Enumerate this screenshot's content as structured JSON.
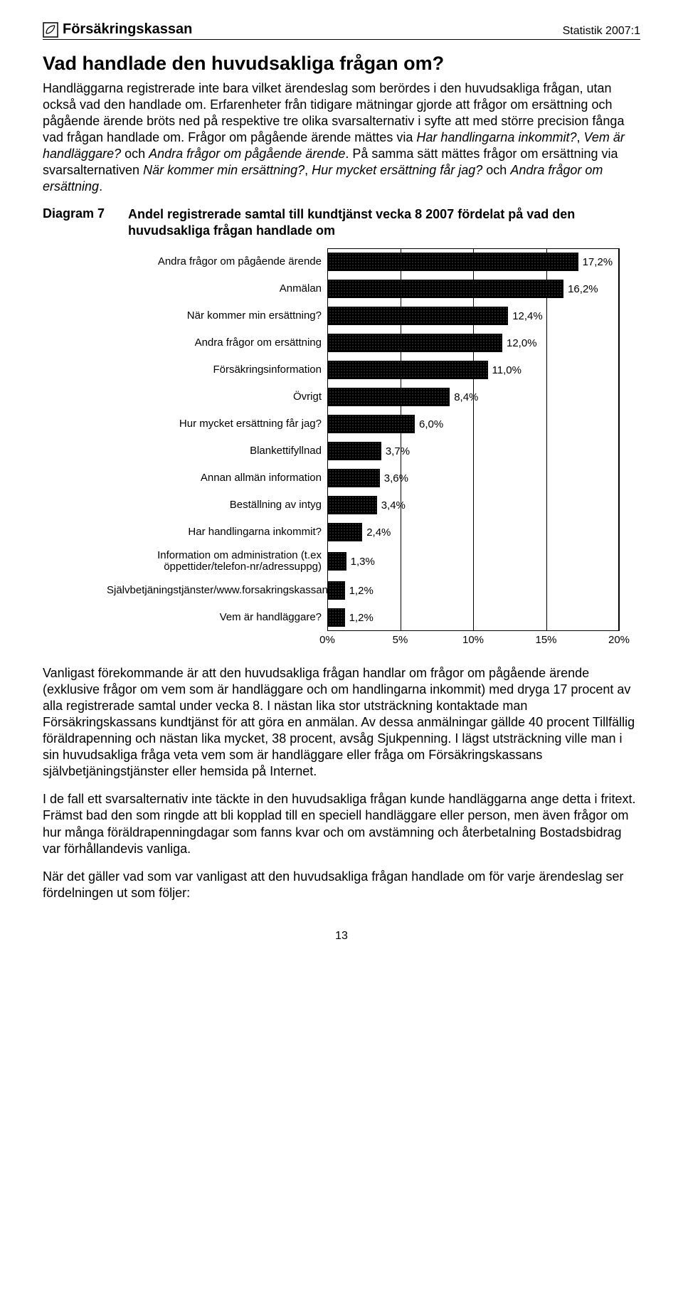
{
  "header": {
    "brand": "Försäkringskassan",
    "doc_id": "Statistik 2007:1"
  },
  "title": "Vad handlade den huvudsakliga frågan om?",
  "para1_a": "Handläggarna registrerade inte bara vilket ärendeslag som berördes i den huvudsakliga frågan, utan också vad den handlade om. Erfarenheter från tidigare mätningar gjorde att frågor om ersättning och pågående ärende bröts ned på respektive tre olika svarsalternativ i syfte att med större precision fånga vad frågan handlade om. Frågor om pågående ärende mättes via ",
  "para1_i1": "Har handlingarna inkommit?",
  "para1_b": ", ",
  "para1_i2": "Vem är handläggare?",
  "para1_c": " och ",
  "para1_i3": "Andra frågor om pågående ärende",
  "para1_d": ". På samma sätt mättes frågor om ersättning via svarsalternativen ",
  "para1_i4": "När kommer min ersättning?",
  "para1_e": ", ",
  "para1_i5": "Hur mycket ersättning får jag?",
  "para1_f": " och ",
  "para1_i6": "Andra frågor om ersättning",
  "para1_g": ".",
  "diagram": {
    "label": "Diagram 7",
    "title": "Andel registrerade samtal till kundtjänst vecka 8 2007 fördelat på vad den huvudsakliga frågan handlade om"
  },
  "chart": {
    "type": "horizontal-bar",
    "xmax": 20,
    "xticks": [
      0,
      5,
      10,
      15,
      20
    ],
    "xtick_labels": [
      "0%",
      "5%",
      "10%",
      "15%",
      "20%"
    ],
    "bar_color": "#111111",
    "pattern": "crosshatch",
    "grid_color": "#000000",
    "background_color": "#ffffff",
    "label_fontsize": 15,
    "value_fontsize": 15,
    "items": [
      {
        "label": "Andra frågor om pågående ärende",
        "value": 17.2,
        "value_label": "17,2%"
      },
      {
        "label": "Anmälan",
        "value": 16.2,
        "value_label": "16,2%"
      },
      {
        "label": "När kommer min ersättning?",
        "value": 12.4,
        "value_label": "12,4%"
      },
      {
        "label": "Andra frågor om ersättning",
        "value": 12.0,
        "value_label": "12,0%"
      },
      {
        "label": "Försäkringsinformation",
        "value": 11.0,
        "value_label": "11,0%"
      },
      {
        "label": "Övrigt",
        "value": 8.4,
        "value_label": "8,4%"
      },
      {
        "label": "Hur mycket ersättning får jag?",
        "value": 6.0,
        "value_label": "6,0%"
      },
      {
        "label": "Blankettifyllnad",
        "value": 3.7,
        "value_label": "3,7%"
      },
      {
        "label": "Annan allmän information",
        "value": 3.6,
        "value_label": "3,6%"
      },
      {
        "label": "Beställning av intyg",
        "value": 3.4,
        "value_label": "3,4%"
      },
      {
        "label": "Har handlingarna inkommit?",
        "value": 2.4,
        "value_label": "2,4%"
      },
      {
        "label": "Information om administration (t.ex öppettider/telefon-nr/adressuppg)",
        "value": 1.3,
        "value_label": "1,3%",
        "tall": true
      },
      {
        "label": "Självbetjäningstjänster/www.forsakringskassan.se",
        "value": 1.2,
        "value_label": "1,2%"
      },
      {
        "label": "Vem är handläggare?",
        "value": 1.2,
        "value_label": "1,2%"
      }
    ]
  },
  "para2": "Vanligast förekommande är att den huvudsakliga frågan handlar om frågor om pågående ärende (exklusive frågor om vem som är handläggare och om handlingarna inkommit) med dryga 17 procent av alla registrerade samtal under vecka 8. I nästan lika stor utsträckning kontaktade man Försäkringskassans kundtjänst för att göra en anmälan. Av dessa anmälningar gällde 40 procent Tillfällig föräldrapenning och nästan lika mycket, 38 procent, avsåg Sjukpenning. I lägst utsträckning ville man i sin huvudsakliga fråga veta vem som är handläggare eller fråga om Försäkringskassans självbetjäningstjänster eller hemsida på Internet.",
  "para3": "I de fall ett svarsalternativ inte täckte in den huvudsakliga frågan kunde handläggarna ange detta i fritext. Främst bad den som ringde att bli kopplad till en speciell handläggare eller person, men även frågor om hur många föräldrapenningdagar som fanns kvar och om avstämning och återbetalning Bostadsbidrag var förhållandevis vanliga.",
  "para4": "När det gäller vad som var vanligast att den huvudsakliga frågan handlade om för varje ärendeslag ser fördelningen ut som följer:",
  "page_number": "13"
}
